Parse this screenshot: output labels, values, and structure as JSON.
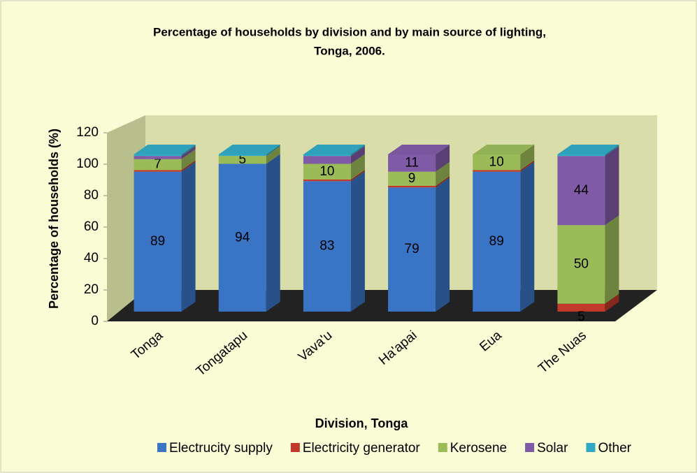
{
  "chart_data": {
    "type": "bar3d_stacked",
    "title": "Percentage of households by division and by main source of lighting,",
    "subtitle": "Tonga, 2006.",
    "x_label": "Division, Tonga",
    "y_label": "Percentage of households (%)",
    "categories": [
      "Tonga",
      "Tongatapu",
      "Vava'u",
      "Ha'apai",
      "Eua",
      "The Nuas"
    ],
    "series": [
      {
        "name": "Electrucity supply",
        "color": "#3a74c4",
        "values": [
          89,
          94,
          83,
          79,
          89,
          0
        ],
        "value_labels": [
          "89",
          "94",
          "83",
          "79",
          "89",
          null
        ]
      },
      {
        "name": "Electricity generator",
        "color": "#c0392b",
        "values": [
          1,
          0,
          1,
          1,
          1,
          5
        ],
        "value_labels": [
          null,
          null,
          null,
          null,
          null,
          "5"
        ]
      },
      {
        "name": "Kerosene",
        "color": "#9bbb59",
        "values": [
          7,
          5,
          10,
          9,
          10,
          50
        ],
        "value_labels": [
          "7",
          "5",
          "10",
          "9",
          "10",
          "50"
        ]
      },
      {
        "name": "Solar",
        "color": "#7f5aa6",
        "values": [
          2,
          0,
          5,
          11,
          0,
          44
        ],
        "value_labels": [
          null,
          null,
          null,
          "11",
          null,
          "44"
        ]
      },
      {
        "name": "Other",
        "color": "#32a9c4",
        "values": [
          1,
          1,
          1,
          0,
          0,
          1
        ],
        "value_labels": [
          null,
          null,
          null,
          null,
          null,
          null
        ]
      }
    ],
    "ylim": [
      0,
      120
    ],
    "yticks": [
      0,
      20,
      40,
      60,
      80,
      100,
      120
    ]
  }
}
